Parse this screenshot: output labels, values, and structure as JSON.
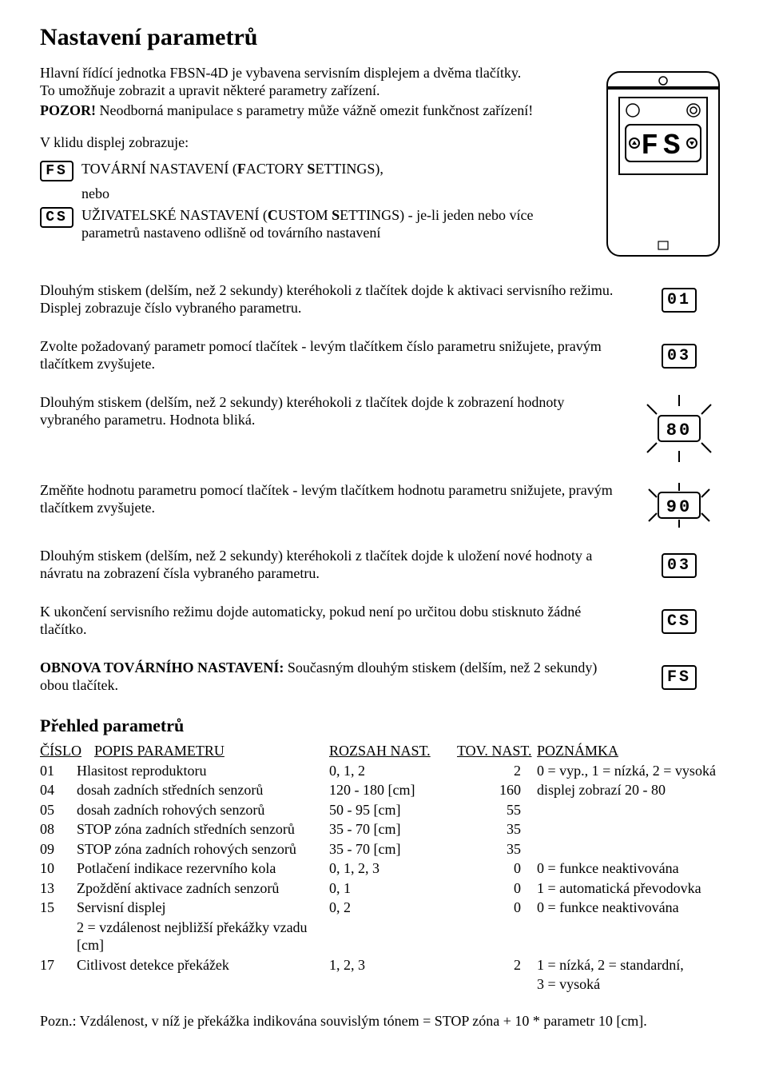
{
  "title": "Nastavení parametrů",
  "intro": {
    "p1": "Hlavní řídící jednotka FBSN-4D je vybavena servisním displejem a dvěma tlačítky. To umožňuje zobrazit a upravit některé parametry zařízení.",
    "p2a": "POZOR!",
    "p2b": " Neodborná manipulace s parametry může vážně omezit funkčnost zařízení!"
  },
  "idle": {
    "lead": "V klidu displej zobrazuje:",
    "fs": "FS",
    "fs_text": "TOVÁRNÍ NASTAVENÍ (FACTORY SETTINGS),",
    "nebo": "nebo",
    "cs": "CS",
    "cs_text": "UŽIVATELSKÉ NASTAVENÍ (CUSTOM SETTINGS) - je-li jeden nebo více parametrů nastaveno odlišně od továrního nastavení"
  },
  "steps": {
    "s1": "Dlouhým stiskem (delším, než 2 sekundy) kteréhokoli z tlačítek dojde k aktivaci servisního režimu. Displej zobrazuje číslo vybraného parametru.",
    "d1": "01",
    "s2": "Zvolte požadovaný parametr pomocí tlačítek - levým tlačítkem číslo parametru snižujete, pravým tlačítkem zvyšujete.",
    "d2": "03",
    "s3": "Dlouhým stiskem (delším, než 2 sekundy) kteréhokoli z tlačítek dojde k zobrazení hodnoty vybraného parametru. Hodnota bliká.",
    "d3": "80",
    "s4": "Změňte hodnotu parametru pomocí tlačítek - levým tlačítkem hodnotu parametru snižujete, pravým tlačítkem zvyšujete.",
    "d4": "90",
    "s5": "Dlouhým stiskem (delším, než 2 sekundy) kteréhokoli z tlačítek dojde k uložení nové hodnoty a návratu na zobrazení čísla vybraného parametru.",
    "d5": "03",
    "s6": "K ukončení servisního režimu dojde automaticky, pokud není po určitou dobu stisknuto žádné tlačítko.",
    "d6": "CS",
    "s7a": "OBNOVA TOVÁRNÍHO NASTAVENÍ:",
    "s7b": " Současným dlouhým stiskem (delším, než 2 sekundy) obou tlačítek.",
    "d7": "FS"
  },
  "params": {
    "heading": "Přehled parametrů",
    "colors": {
      "stroke": "#000000",
      "background": "#ffffff"
    },
    "head": {
      "c0": "ČÍSLO",
      "c1": "POPIS PARAMETRU",
      "c2": "ROZSAH NAST.",
      "c3": "TOV. NAST.",
      "c4": "POZNÁMKA"
    },
    "rows": [
      {
        "n": "01",
        "desc": "Hlasitost reproduktoru",
        "range": "0, 1, 2",
        "def": "2",
        "note": "0 = vyp., 1 = nízká, 2 = vysoká"
      },
      {
        "n": "04",
        "desc": "dosah zadních středních senzorů",
        "range": "120 - 180 [cm]",
        "def": "160",
        "note": "displej zobrazí 20 - 80"
      },
      {
        "n": "05",
        "desc": "dosah zadních rohových senzorů",
        "range": "50 - 95 [cm]",
        "def": "55",
        "note": ""
      },
      {
        "n": "08",
        "desc": "STOP zóna zadních středních senzorů",
        "range": "35 - 70 [cm]",
        "def": "35",
        "note": ""
      },
      {
        "n": "09",
        "desc": "STOP zóna zadních rohových senzorů",
        "range": "35 - 70 [cm]",
        "def": "35",
        "note": ""
      },
      {
        "n": "10",
        "desc": "Potlačení indikace rezervního kola",
        "range": "0, 1, 2, 3",
        "def": "0",
        "note": "0 = funkce neaktivována"
      },
      {
        "n": "13",
        "desc": "Zpoždění aktivace zadních senzorů",
        "range": "0, 1",
        "def": "0",
        "note": "1 = automatická převodovka"
      },
      {
        "n": "15",
        "desc": "Servisní displej",
        "range": "0, 2",
        "def": "0",
        "note": "0 = funkce neaktivována"
      },
      {
        "n": "",
        "desc": "2 = vzdálenost nejbližší překážky vzadu [cm]",
        "range": "",
        "def": "",
        "note": ""
      },
      {
        "n": "17",
        "desc": "Citlivost detekce překážek",
        "range": "1, 2, 3",
        "def": "2",
        "note": "1 = nízká, 2 = standardní,"
      },
      {
        "n": "",
        "desc": "",
        "range": "",
        "def": "",
        "note": "3 = vysoká"
      }
    ],
    "footnote": "Pozn.:  Vzdálenost, v níž je překážka indikována souvislým tónem = STOP zóna + 10 * parametr 10 [cm]."
  },
  "diagram": {
    "stroke": "#000000",
    "bg": "#ffffff",
    "display_text": "FS"
  }
}
